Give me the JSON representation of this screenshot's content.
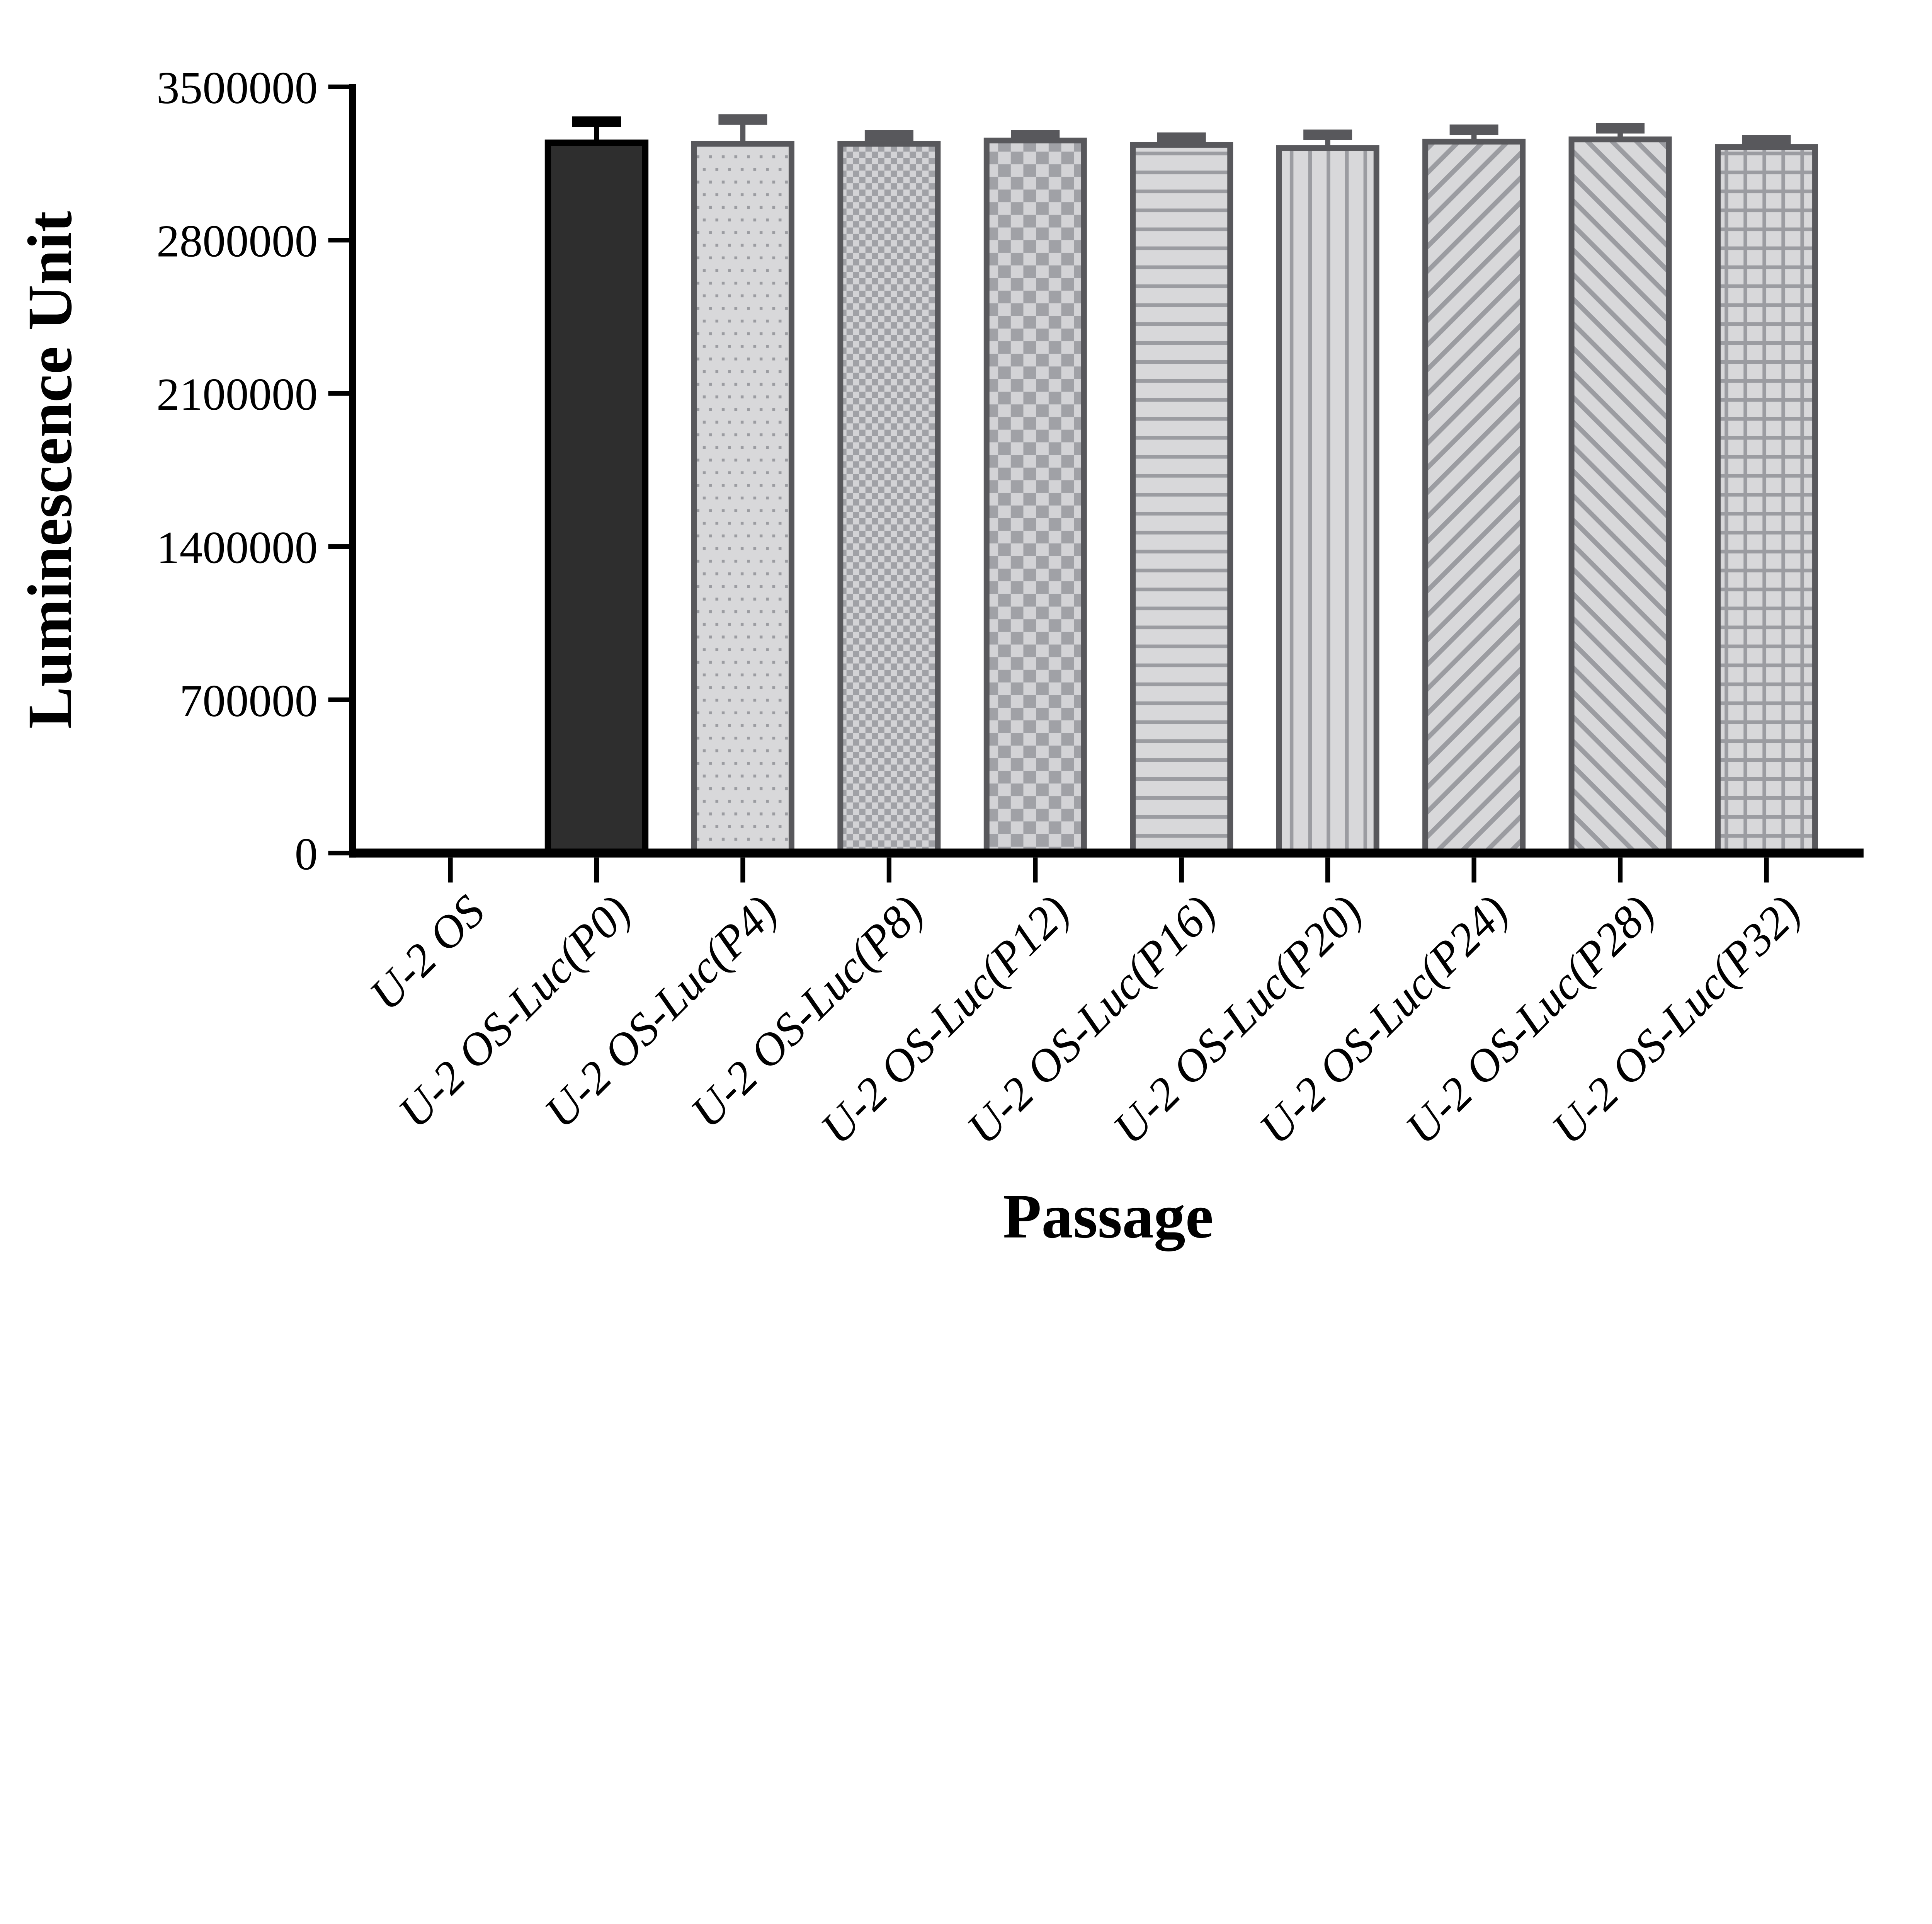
{
  "chart_data": {
    "type": "bar",
    "title": "",
    "xlabel": "Passage",
    "ylabel": "Luminescence Unit",
    "categories": [
      "U-2 OS",
      "U-2 OS-Luc(P0)",
      "U-2 OS-Luc(P4)",
      "U-2 OS-Luc(P8)",
      "U-2 OS-Luc(P12)",
      "U-2 OS-Luc(P16)",
      "U-2 OS-Luc(P20)",
      "U-2 OS-Luc(P24)",
      "U-2 OS-Luc(P28)",
      "U-2 OS-Luc(P32)"
    ],
    "series": [
      {
        "name": "Luminescence Unit",
        "values": [
          0,
          3245000,
          3240000,
          3240000,
          3255000,
          3235000,
          3220000,
          3250000,
          3260000,
          3225000
        ],
        "errors_plus": [
          0,
          120000,
          135000,
          62000,
          48000,
          57000,
          85000,
          78000,
          75000,
          55000
        ]
      }
    ],
    "bar_patterns": [
      "none",
      "solid-dark",
      "dots",
      "checker-small",
      "checker-large",
      "horizontal-lines",
      "vertical-lines",
      "diagonal-up",
      "diagonal-down",
      "grid"
    ],
    "ylim": [
      0,
      3500000
    ],
    "yticks": [
      0,
      700000,
      1400000,
      2100000,
      2800000,
      3500000
    ],
    "grid": false,
    "legend_position": "none"
  },
  "colors": {
    "axis": "#000000",
    "text": "#000000",
    "dark_bar_fill": "#2e2e2e",
    "dark_bar_border": "#000000",
    "light_bar_bg": "#d8d8da",
    "light_bar_border": "#58585c",
    "pattern_mark": "#9b9ca1",
    "checker_dark": "#a0a1a6",
    "checker_light": "#d3d3d6"
  }
}
